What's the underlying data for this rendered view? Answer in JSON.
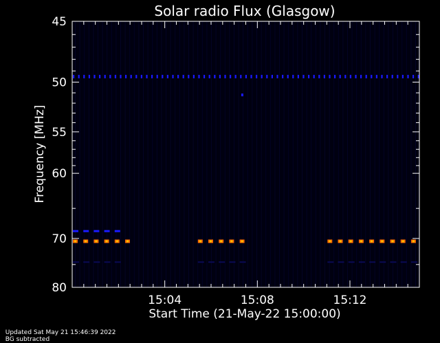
{
  "chart_data": {
    "type": "heatmap",
    "title": "Solar radio Flux (Glasgow)",
    "xlabel": "Start Time (21-May-22 15:00:00)",
    "ylabel": "Frequency [MHz]",
    "x_unit": "minutes after 15:00:00",
    "xlim": [
      0,
      15.0
    ],
    "ylim": [
      45,
      80
    ],
    "y_ticks": [
      45,
      50,
      55,
      60,
      70,
      80
    ],
    "x_ticks": [
      {
        "value": 4,
        "label": "15:04"
      },
      {
        "value": 8,
        "label": "15:08"
      },
      {
        "value": 12,
        "label": "15:12"
      }
    ],
    "colors": {
      "background": "#000000",
      "plot_background": "#000010",
      "axis": "#ffffff",
      "strong_band": "#ff6a00",
      "strong_band_core": "#ffc000",
      "blue_band": "#1a1aff",
      "faint_band": "#0a0a55"
    },
    "bands": [
      {
        "freq": 49.5,
        "start": 0.0,
        "end": 15.0,
        "intensity": "blue",
        "style": "dotted"
      },
      {
        "freq": 68.7,
        "start": 0.0,
        "end": 1.9,
        "intensity": "blue",
        "style": "dashed"
      },
      {
        "freq": 70.5,
        "start": 0.0,
        "end": 2.4,
        "intensity": "strong",
        "style": "dashed"
      },
      {
        "freq": 70.5,
        "start": 5.4,
        "end": 7.5,
        "intensity": "strong",
        "style": "dashed"
      },
      {
        "freq": 70.5,
        "start": 11.0,
        "end": 14.8,
        "intensity": "strong",
        "style": "dashed"
      },
      {
        "freq": 74.5,
        "start": 0.0,
        "end": 2.0,
        "intensity": "faint",
        "style": "dashed"
      },
      {
        "freq": 74.5,
        "start": 5.4,
        "end": 7.5,
        "intensity": "faint",
        "style": "dashed"
      },
      {
        "freq": 74.5,
        "start": 11.0,
        "end": 14.8,
        "intensity": "faint",
        "style": "dashed"
      }
    ],
    "spots": [
      {
        "time": 7.35,
        "freq": 51.2
      }
    ]
  },
  "footer": {
    "updated": "Updated Sat May 21 15:46:39 2022",
    "note": "BG subtracted"
  }
}
